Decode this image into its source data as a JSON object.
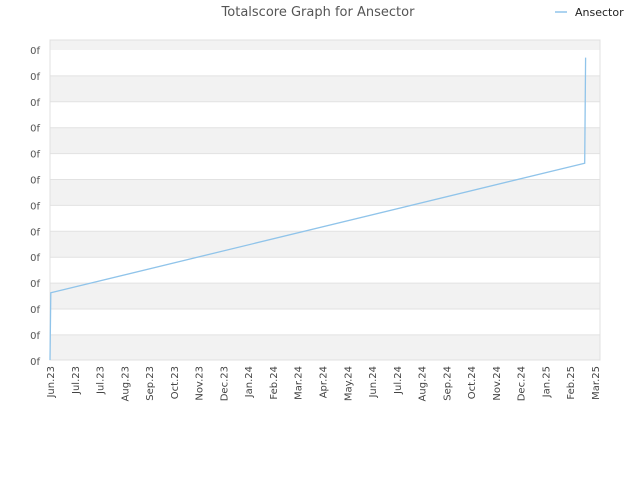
{
  "chart_data": {
    "type": "line",
    "title": "Totalscore Graph for Ansector",
    "legend": {
      "position": "top-right",
      "entries": [
        "Ansector"
      ]
    },
    "x_tick_labels": [
      "Jun.23",
      "Jul.23",
      "Jul.23",
      "Aug.23",
      "Sep.23",
      "Oct.23",
      "Nov.23",
      "Dec.23",
      "Jan.24",
      "Feb.24",
      "Mar.24",
      "Apr.24",
      "May.24",
      "Jun.24",
      "Jul.24",
      "Aug.24",
      "Sep.24",
      "Oct.24",
      "Nov.24",
      "Dec.24",
      "Jan.25",
      "Feb.25",
      "Mar.25"
    ],
    "y_tick_labels": [
      "0f",
      "0f",
      "0f",
      "0f",
      "0f",
      "0f",
      "0f",
      "0f",
      "0f",
      "0f",
      "0f",
      "0f",
      "0f"
    ],
    "grid": true,
    "series": [
      {
        "name": "Ansector",
        "color": "#90c4ea",
        "points": [
          {
            "x": "2023-06-01",
            "y": 0.0
          },
          {
            "x": "2023-06-02",
            "y": 0.21
          },
          {
            "x": "2025-02-20",
            "y": 0.615
          },
          {
            "x": "2025-02-21",
            "y": 0.945
          }
        ]
      }
    ]
  }
}
